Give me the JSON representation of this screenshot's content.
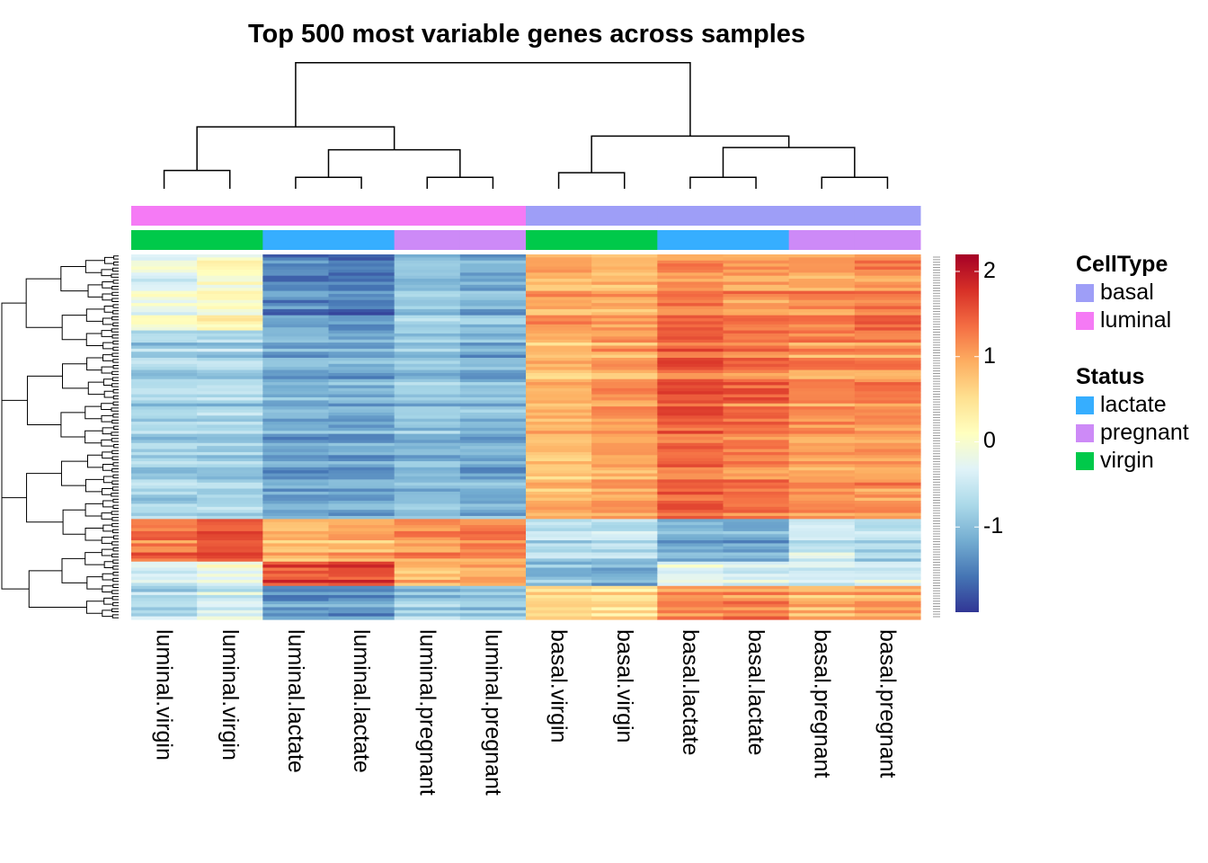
{
  "title": "Top 500 most variable genes across samples",
  "chart_data": {
    "type": "heatmap",
    "title": "Top 500 most variable genes across samples",
    "samples": [
      "luminal.virgin",
      "luminal.virgin",
      "luminal.lactate",
      "luminal.lactate",
      "luminal.pregnant",
      "luminal.pregnant",
      "basal.virgin",
      "basal.virgin",
      "basal.lactate",
      "basal.lactate",
      "basal.pregnant",
      "basal.pregnant"
    ],
    "annotations": {
      "CellType": [
        "luminal",
        "luminal",
        "luminal",
        "luminal",
        "luminal",
        "luminal",
        "basal",
        "basal",
        "basal",
        "basal",
        "basal",
        "basal"
      ],
      "Status": [
        "virgin",
        "virgin",
        "lactate",
        "lactate",
        "pregnant",
        "pregnant",
        "virgin",
        "virgin",
        "lactate",
        "lactate",
        "pregnant",
        "pregnant"
      ]
    },
    "gene_count": 500,
    "row_blocks": [
      {
        "fraction": 0.21,
        "z": [
          -0.2,
          0.1,
          -1.4,
          -1.5,
          -0.9,
          -1.1,
          1.0,
          0.9,
          1.2,
          1.1,
          1.1,
          1.2
        ]
      },
      {
        "fraction": 0.52,
        "z": [
          -0.8,
          -0.8,
          -1.2,
          -1.2,
          -1.0,
          -1.1,
          0.8,
          1.0,
          1.4,
          1.3,
          1.1,
          1.1
        ]
      },
      {
        "fraction": 0.12,
        "z": [
          1.3,
          1.6,
          0.8,
          0.9,
          1.1,
          1.2,
          -0.6,
          -0.6,
          -1.1,
          -1.2,
          -0.5,
          -0.7
        ]
      },
      {
        "fraction": 0.07,
        "z": [
          -0.3,
          -0.1,
          1.6,
          1.6,
          0.9,
          1.0,
          -1.0,
          -1.1,
          -0.3,
          -0.3,
          -0.4,
          -0.4
        ]
      },
      {
        "fraction": 0.08,
        "z": [
          -0.7,
          -0.4,
          -1.3,
          -1.3,
          -0.9,
          -0.9,
          0.6,
          0.5,
          1.2,
          1.2,
          0.9,
          1.0
        ]
      }
    ],
    "colorbar": {
      "min": -2.0,
      "max": 2.2,
      "ticks": [
        -1,
        0,
        1,
        2
      ],
      "tick_labels": [
        "-1",
        "0",
        "1",
        "2"
      ],
      "colors": [
        "#313695",
        "#4575b4",
        "#74add1",
        "#abd9e9",
        "#e0f3f8",
        "#ffffbf",
        "#fee090",
        "#fdae61",
        "#f46d43",
        "#d73027",
        "#a50026"
      ]
    },
    "column_dendrogram": {
      "leaf_order": [
        0,
        1,
        2,
        3,
        4,
        5,
        6,
        7,
        8,
        9,
        10,
        11
      ],
      "merges": [
        {
          "left": 0,
          "right": 1,
          "height": 0.08
        },
        {
          "left": 2,
          "right": 3,
          "height": 0.05
        },
        {
          "left": 4,
          "right": 5,
          "height": 0.05
        },
        {
          "left": 6,
          "right": 7,
          "height": 0.07
        },
        {
          "left": 8,
          "right": 9,
          "height": 0.05
        },
        {
          "left": 10,
          "right": 11,
          "height": 0.05
        },
        {
          "left": "2-3",
          "right": "4-5",
          "height": 0.17
        },
        {
          "left": "0-1",
          "right": "2-5",
          "height": 0.27
        },
        {
          "left": "8-9",
          "right": "10-11",
          "height": 0.18
        },
        {
          "left": "6-7",
          "right": "8-11",
          "height": 0.23
        },
        {
          "left": "0-5",
          "right": "6-11",
          "height": 0.55
        }
      ]
    }
  },
  "legend": {
    "celltype_title": "CellType",
    "celltype": [
      {
        "label": "basal",
        "color": "#9e9ef7"
      },
      {
        "label": "luminal",
        "color": "#f57af5"
      }
    ],
    "status_title": "Status",
    "status": [
      {
        "label": "lactate",
        "color": "#36aeff"
      },
      {
        "label": "pregnant",
        "color": "#cd8af7"
      },
      {
        "label": "virgin",
        "color": "#00c94a"
      }
    ]
  }
}
